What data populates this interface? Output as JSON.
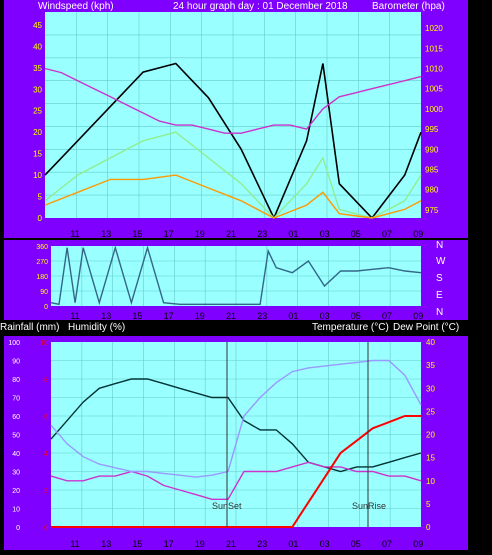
{
  "colors": {
    "frame": "#8000ff",
    "plot_bg": "#99ffff",
    "grid": "#66cccc",
    "wind_gust": "#000000",
    "wind_avg": "#90ee90",
    "wind_min": "#ff9900",
    "barometer": "#cc33cc",
    "direction": "#336688",
    "temperature": "#003333",
    "dew_point": "#cc33cc",
    "humidity": "#9999ff",
    "rainfall": "#ff0000",
    "axis_text_left": "#ffff00",
    "axis_text_right": "#ffff00",
    "rain_axis_text": "#ff0000",
    "white_text": "#ffffff"
  },
  "header": {
    "windspeed_label": "Windspeed (kph)",
    "graph_title": "24 hour graph day : 01 December 2018",
    "barometer_label": "Barometer (hpa)"
  },
  "middle_header": {
    "rainfall_label": "Rainfall (mm)",
    "humidity_label": "Humidity (%)",
    "temp_label": "Temperature (°C)",
    "dew_label": "Dew Point (°C)"
  },
  "compass": [
    "N",
    "W",
    "S",
    "E",
    "N"
  ],
  "annotations": {
    "sunset": "SunSet",
    "sunrise": "SunRise"
  },
  "chart_data": [
    {
      "type": "line",
      "x_ticks": [
        "11",
        "13",
        "15",
        "17",
        "19",
        "21",
        "23",
        "01",
        "03",
        "05",
        "07",
        "09"
      ],
      "left_axis": {
        "ticks": [
          "0",
          "5",
          "10",
          "15",
          "20",
          "25",
          "30",
          "35",
          "40",
          "45"
        ],
        "range": [
          0,
          48
        ]
      },
      "right_axis": {
        "ticks": [
          "975",
          "980",
          "985",
          "990",
          "995",
          "1000",
          "1005",
          "1010",
          "1015",
          "1020"
        ],
        "range": [
          973,
          1024
        ]
      },
      "grid": true,
      "series": [
        {
          "name": "wind_gust",
          "x": [
            0,
            2,
            4,
            6,
            8,
            10,
            12,
            14,
            16,
            17,
            18,
            20,
            22,
            23
          ],
          "y": [
            10,
            18,
            26,
            34,
            36,
            28,
            16,
            0,
            18,
            36,
            8,
            0,
            10,
            20
          ]
        },
        {
          "name": "wind_avg",
          "x": [
            0,
            2,
            4,
            6,
            8,
            10,
            12,
            14,
            16,
            17,
            18,
            20,
            22,
            23
          ],
          "y": [
            4,
            10,
            14,
            18,
            20,
            14,
            8,
            0,
            8,
            14,
            2,
            0,
            4,
            10
          ]
        },
        {
          "name": "wind_min",
          "x": [
            0,
            2,
            4,
            6,
            8,
            10,
            12,
            14,
            16,
            17,
            18,
            20,
            22,
            23
          ],
          "y": [
            3,
            6,
            9,
            9,
            10,
            7,
            4,
            0,
            3,
            6,
            1,
            0,
            2,
            4
          ]
        },
        {
          "name": "barometer",
          "x": [
            0,
            1,
            2,
            3,
            4,
            5,
            6,
            7,
            8,
            9,
            10,
            11,
            12,
            13,
            14,
            15,
            16,
            17,
            18,
            19,
            20,
            21,
            22,
            23
          ],
          "y": [
            1010,
            1009,
            1007,
            1005,
            1003,
            1001,
            999,
            997,
            996,
            996,
            995,
            994,
            994,
            995,
            996,
            996,
            995,
            1000,
            1003,
            1004,
            1005,
            1006,
            1007,
            1008
          ]
        }
      ]
    },
    {
      "type": "line",
      "left_axis": {
        "ticks": [
          "360",
          "270",
          "180",
          "90",
          "0"
        ],
        "range": [
          0,
          360
        ]
      },
      "grid": true,
      "series": [
        {
          "name": "wind_direction",
          "x": [
            0,
            0.5,
            1,
            1.5,
            2,
            3,
            4,
            5,
            6,
            7,
            8,
            9,
            10,
            11,
            12,
            13,
            13.5,
            14,
            15,
            16,
            17,
            18,
            19,
            20,
            21,
            22,
            23
          ],
          "y": [
            20,
            10,
            350,
            20,
            350,
            20,
            350,
            20,
            350,
            20,
            10,
            10,
            10,
            10,
            10,
            10,
            330,
            230,
            200,
            270,
            120,
            210,
            210,
            220,
            230,
            210,
            200
          ]
        }
      ]
    },
    {
      "type": "line",
      "x_ticks": [
        "11",
        "13",
        "15",
        "17",
        "19",
        "21",
        "23",
        "01",
        "03",
        "05",
        "07",
        "09"
      ],
      "left_axis": {
        "ticks": [
          "0",
          "10",
          "20",
          "30",
          "40",
          "50",
          "60",
          "70",
          "80",
          "90",
          "100"
        ],
        "range": [
          0,
          100
        ]
      },
      "rain_axis": {
        "ticks": [
          "0",
          "2",
          "4",
          "6",
          "8",
          "10"
        ],
        "range": [
          0,
          30
        ]
      },
      "right_axis": {
        "ticks": [
          "0",
          "5",
          "10",
          "15",
          "20",
          "25",
          "30",
          "35",
          "40"
        ],
        "range": [
          0,
          40
        ]
      },
      "grid": true,
      "series": [
        {
          "name": "temperature",
          "x": [
            0,
            1,
            2,
            3,
            4,
            5,
            6,
            7,
            8,
            9,
            10,
            11,
            12,
            13,
            14,
            15,
            16,
            17,
            18,
            19,
            20,
            21,
            22,
            23
          ],
          "y": [
            19,
            23,
            27,
            30,
            31,
            32,
            32,
            31,
            30,
            29,
            28,
            28,
            23,
            21,
            21,
            18,
            14,
            13,
            12,
            13,
            13,
            14,
            15,
            16
          ]
        },
        {
          "name": "dew_point",
          "x": [
            0,
            1,
            2,
            3,
            4,
            5,
            6,
            7,
            8,
            9,
            10,
            11,
            12,
            13,
            14,
            15,
            16,
            17,
            18,
            19,
            20,
            21,
            22,
            23
          ],
          "y": [
            11,
            10,
            10,
            11,
            11,
            12,
            11,
            9,
            8,
            7,
            6,
            6,
            12,
            12,
            12,
            13,
            14,
            13,
            13,
            12,
            12,
            11,
            11,
            10
          ]
        },
        {
          "name": "humidity",
          "x": [
            0,
            1,
            2,
            3,
            4,
            5,
            6,
            7,
            8,
            9,
            10,
            11,
            12,
            13,
            14,
            15,
            16,
            17,
            18,
            19,
            20,
            21,
            22,
            23
          ],
          "y": [
            55,
            45,
            38,
            34,
            32,
            30,
            30,
            29,
            28,
            27,
            28,
            30,
            60,
            70,
            78,
            84,
            86,
            87,
            88,
            89,
            90,
            90,
            82,
            66
          ]
        },
        {
          "name": "rainfall",
          "x": [
            0,
            15,
            15.5,
            16,
            17,
            18,
            19,
            20,
            21,
            22,
            23
          ],
          "y": [
            0,
            0,
            2,
            4,
            8,
            12,
            14,
            16,
            17,
            18,
            18
          ]
        }
      ]
    }
  ]
}
